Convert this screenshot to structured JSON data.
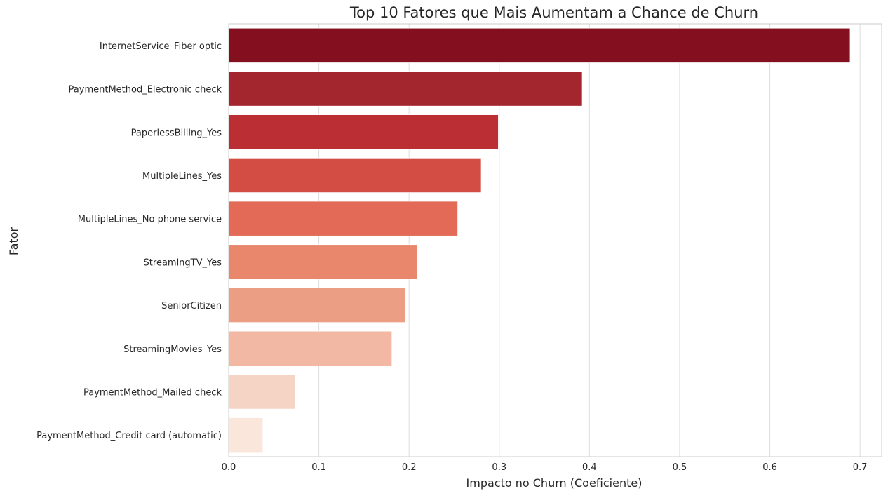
{
  "chart_data": {
    "type": "bar",
    "orientation": "horizontal",
    "title": "Top 10 Fatores que Mais Aumentam a Chance de Churn",
    "xlabel": "Impacto no Churn (Coeficiente)",
    "ylabel": "Fator",
    "xlim": [
      0,
      0.724
    ],
    "xticks": [
      0.0,
      0.1,
      0.2,
      0.3,
      0.4,
      0.5,
      0.6,
      0.7
    ],
    "xtick_labels": [
      "0.0",
      "0.1",
      "0.2",
      "0.3",
      "0.4",
      "0.5",
      "0.6",
      "0.7"
    ],
    "grid": "vertical",
    "categories": [
      "InternetService_Fiber optic",
      "PaymentMethod_Electronic check",
      "PaperlessBilling_Yes",
      "MultipleLines_Yes",
      "MultipleLines_No phone service",
      "StreamingTV_Yes",
      "SeniorCitizen",
      "StreamingMovies_Yes",
      "PaymentMethod_Mailed check",
      "PaymentMethod_Credit card (automatic)"
    ],
    "values": [
      0.689,
      0.392,
      0.299,
      0.28,
      0.254,
      0.209,
      0.196,
      0.181,
      0.074,
      0.038
    ],
    "colors": [
      "#830f1f",
      "#a3262f",
      "#bb2e33",
      "#d44d44",
      "#e26a56",
      "#e9876d",
      "#ec9e85",
      "#f2b8a4",
      "#f5d4c6",
      "#fbe6dc"
    ]
  }
}
